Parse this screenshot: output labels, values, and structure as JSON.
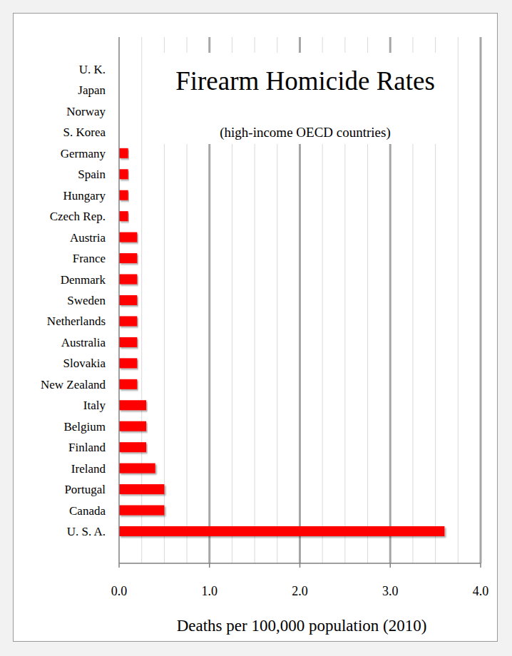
{
  "chart_data": {
    "type": "bar",
    "orientation": "horizontal",
    "title": "Firearm Homicide Rates",
    "subtitle": "(high-income OECD countries)",
    "x_label": "Deaths per 100,000 population (2010)",
    "categories": [
      "U. K.",
      "Japan",
      "Norway",
      "S. Korea",
      "Germany",
      "Spain",
      "Hungary",
      "Czech Rep.",
      "Austria",
      "France",
      "Denmark",
      "Sweden",
      "Netherlands",
      "Australia",
      "Slovakia",
      "New Zealand",
      "Italy",
      "Belgium",
      "Finland",
      "Ireland",
      "Portugal",
      "Canada",
      "U. S. A."
    ],
    "values": [
      0,
      0,
      0,
      0,
      0.1,
      0.1,
      0.1,
      0.1,
      0.2,
      0.2,
      0.2,
      0.2,
      0.2,
      0.2,
      0.2,
      0.2,
      0.3,
      0.3,
      0.3,
      0.4,
      0.5,
      0.5,
      3.6
    ],
    "color": "#ff0000",
    "xlim": [
      0,
      4
    ],
    "xticks": [
      {
        "value": 0,
        "label": "0.0"
      },
      {
        "value": 1,
        "label": "1.0"
      },
      {
        "value": 2,
        "label": "2.0"
      },
      {
        "value": 3,
        "label": "3.0"
      },
      {
        "value": 4,
        "label": "4.0"
      }
    ],
    "grid": true
  }
}
